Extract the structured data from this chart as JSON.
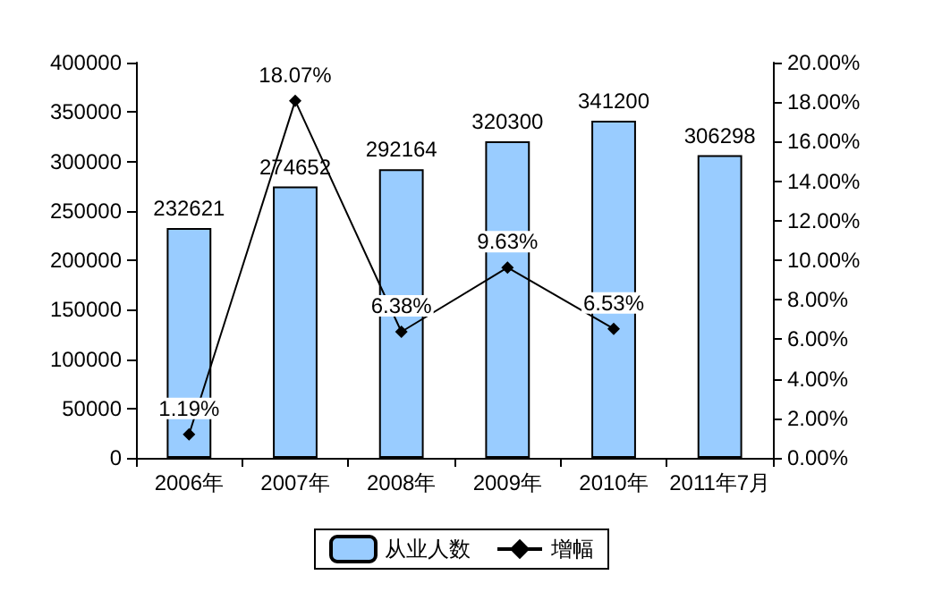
{
  "chart_data": {
    "type": "bar",
    "categories": [
      "2006年",
      "2007年",
      "2008年",
      "2009年",
      "2010年",
      "2011年7月"
    ],
    "series": [
      {
        "name": "从业人数",
        "color": "#99ccff",
        "values": [
          232621,
          274652,
          292164,
          320300,
          341200,
          306298
        ],
        "value_labels": [
          "232621",
          "274652",
          "292164",
          "320300",
          "341200",
          "306298"
        ]
      },
      {
        "name": "增幅",
        "type": "line",
        "axis": "y2",
        "color": "#000000",
        "marker": "diamond",
        "values": [
          1.19,
          18.07,
          6.38,
          9.63,
          6.53,
          null
        ],
        "value_labels": [
          "1.19%",
          "18.07%",
          "6.38%",
          "9.63%",
          "6.53%",
          null
        ]
      }
    ],
    "ylim": [
      0,
      400000
    ],
    "yticks": [
      0,
      50000,
      100000,
      150000,
      200000,
      250000,
      300000,
      350000,
      400000
    ],
    "y2lim": [
      0,
      20
    ],
    "y2ticks": [
      {
        "value": 0,
        "label": "0.00%"
      },
      {
        "value": 2,
        "label": "2.00%"
      },
      {
        "value": 4,
        "label": "4.00%"
      },
      {
        "value": 6,
        "label": "6.00%"
      },
      {
        "value": 8,
        "label": "8.00%"
      },
      {
        "value": 10,
        "label": "10.00%"
      },
      {
        "value": 12,
        "label": "12.00%"
      },
      {
        "value": 14,
        "label": "14.00%"
      },
      {
        "value": 16,
        "label": "16.00%"
      },
      {
        "value": 18,
        "label": "18.00%"
      },
      {
        "value": 20,
        "label": "20.00%"
      }
    ],
    "grid": false,
    "legend": "bottom"
  }
}
